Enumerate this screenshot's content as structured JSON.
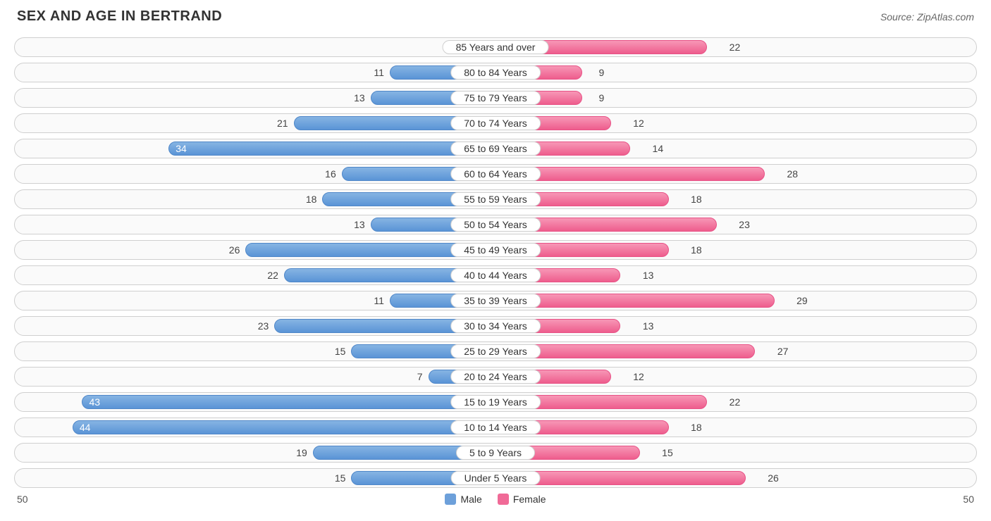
{
  "title": "SEX AND AGE IN BERTRAND",
  "source": "Source: ZipAtlas.com",
  "chart": {
    "type": "population-pyramid",
    "max_value": 50,
    "inside_label_threshold": 33,
    "axis_left_label": "50",
    "axis_right_label": "50",
    "colors": {
      "male_gradient_top": "#86b4e3",
      "male_gradient_bottom": "#5a94d6",
      "male_border": "#4f87c9",
      "female_gradient_top": "#f797b6",
      "female_gradient_bottom": "#ee5d8d",
      "female_border": "#e85186",
      "row_border": "#cfcfcf",
      "row_bg": "#fafafa",
      "text": "#333333"
    },
    "legend": [
      {
        "label": "Male",
        "color": "#6da0da"
      },
      {
        "label": "Female",
        "color": "#f06a97"
      }
    ],
    "rows": [
      {
        "category": "85 Years and over",
        "male": 2,
        "female": 22
      },
      {
        "category": "80 to 84 Years",
        "male": 11,
        "female": 9
      },
      {
        "category": "75 to 79 Years",
        "male": 13,
        "female": 9
      },
      {
        "category": "70 to 74 Years",
        "male": 21,
        "female": 12
      },
      {
        "category": "65 to 69 Years",
        "male": 34,
        "female": 14
      },
      {
        "category": "60 to 64 Years",
        "male": 16,
        "female": 28
      },
      {
        "category": "55 to 59 Years",
        "male": 18,
        "female": 18
      },
      {
        "category": "50 to 54 Years",
        "male": 13,
        "female": 23
      },
      {
        "category": "45 to 49 Years",
        "male": 26,
        "female": 18
      },
      {
        "category": "40 to 44 Years",
        "male": 22,
        "female": 13
      },
      {
        "category": "35 to 39 Years",
        "male": 11,
        "female": 29
      },
      {
        "category": "30 to 34 Years",
        "male": 23,
        "female": 13
      },
      {
        "category": "25 to 29 Years",
        "male": 15,
        "female": 27
      },
      {
        "category": "20 to 24 Years",
        "male": 7,
        "female": 12
      },
      {
        "category": "15 to 19 Years",
        "male": 43,
        "female": 22
      },
      {
        "category": "10 to 14 Years",
        "male": 44,
        "female": 18
      },
      {
        "category": "5 to 9 Years",
        "male": 19,
        "female": 15
      },
      {
        "category": "Under 5 Years",
        "male": 15,
        "female": 26
      }
    ]
  }
}
